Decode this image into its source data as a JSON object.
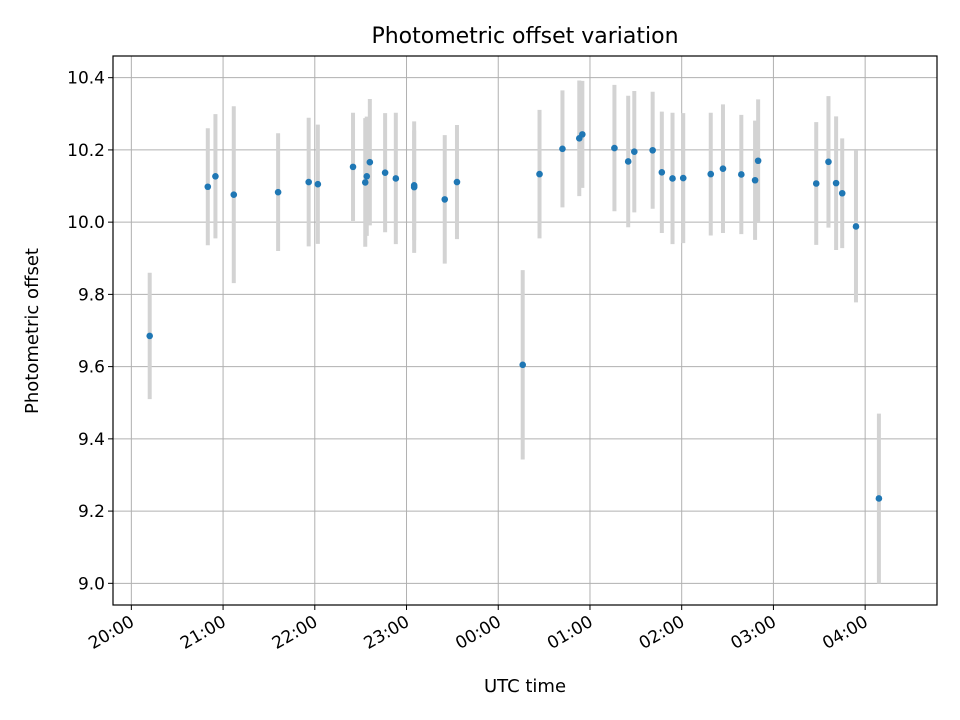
{
  "chart_data": {
    "type": "scatter",
    "title": "Photometric offset variation",
    "xlabel": "UTC time",
    "ylabel": "Photometric offset",
    "grid": true,
    "x_ticks": [
      "20:00",
      "21:00",
      "22:00",
      "23:00",
      "00:00",
      "01:00",
      "02:00",
      "03:00",
      "04:00"
    ],
    "y_ticks": [
      "9.0",
      "9.2",
      "9.4",
      "9.6",
      "9.8",
      "10.0",
      "10.2",
      "10.4"
    ],
    "xlim": [
      "19:48",
      "04:47"
    ],
    "ylim": [
      8.94,
      10.46
    ],
    "colors": {
      "point": "#1f77b4",
      "errorbar": "#d3d3d3",
      "grid": "#b0b0b0"
    },
    "points": [
      {
        "x": "20:12",
        "y": 9.685,
        "err": 0.175
      },
      {
        "x": "20:50",
        "y": 10.098,
        "err": 0.162
      },
      {
        "x": "20:55",
        "y": 10.127,
        "err": 0.172
      },
      {
        "x": "21:07",
        "y": 10.076,
        "err": 0.245
      },
      {
        "x": "21:36",
        "y": 10.083,
        "err": 0.163
      },
      {
        "x": "21:56",
        "y": 10.111,
        "err": 0.178
      },
      {
        "x": "22:02",
        "y": 10.105,
        "err": 0.165
      },
      {
        "x": "22:25",
        "y": 10.153,
        "err": 0.15
      },
      {
        "x": "22:33",
        "y": 10.11,
        "err": 0.178
      },
      {
        "x": "22:34",
        "y": 10.127,
        "err": 0.165
      },
      {
        "x": "22:36",
        "y": 10.166,
        "err": 0.175
      },
      {
        "x": "22:46",
        "y": 10.137,
        "err": 0.165
      },
      {
        "x": "22:53",
        "y": 10.121,
        "err": 0.182
      },
      {
        "x": "23:05",
        "y": 10.102,
        "err": 0.152
      },
      {
        "x": "23:05",
        "y": 10.097,
        "err": 0.182
      },
      {
        "x": "23:25",
        "y": 10.063,
        "err": 0.178
      },
      {
        "x": "23:33",
        "y": 10.111,
        "err": 0.158
      },
      {
        "x": "00:16",
        "y": 9.605,
        "err": 0.262
      },
      {
        "x": "00:27",
        "y": 10.133,
        "err": 0.178
      },
      {
        "x": "00:42",
        "y": 10.203,
        "err": 0.162
      },
      {
        "x": "00:53",
        "y": 10.232,
        "err": 0.16
      },
      {
        "x": "00:55",
        "y": 10.243,
        "err": 0.148
      },
      {
        "x": "01:16",
        "y": 10.205,
        "err": 0.175
      },
      {
        "x": "01:25",
        "y": 10.168,
        "err": 0.182
      },
      {
        "x": "01:29",
        "y": 10.195,
        "err": 0.168
      },
      {
        "x": "01:41",
        "y": 10.199,
        "err": 0.162
      },
      {
        "x": "01:47",
        "y": 10.138,
        "err": 0.168
      },
      {
        "x": "01:54",
        "y": 10.121,
        "err": 0.182
      },
      {
        "x": "02:01",
        "y": 10.122,
        "err": 0.18
      },
      {
        "x": "02:19",
        "y": 10.133,
        "err": 0.17
      },
      {
        "x": "02:27",
        "y": 10.148,
        "err": 0.178
      },
      {
        "x": "02:39",
        "y": 10.132,
        "err": 0.165
      },
      {
        "x": "02:48",
        "y": 10.116,
        "err": 0.165
      },
      {
        "x": "02:50",
        "y": 10.17,
        "err": 0.17
      },
      {
        "x": "03:28",
        "y": 10.107,
        "err": 0.17
      },
      {
        "x": "03:36",
        "y": 10.167,
        "err": 0.182
      },
      {
        "x": "03:41",
        "y": 10.108,
        "err": 0.185
      },
      {
        "x": "03:45",
        "y": 10.08,
        "err": 0.152
      },
      {
        "x": "03:54",
        "y": 9.988,
        "err": 0.21
      },
      {
        "x": "04:09",
        "y": 9.235,
        "err": 0.235
      }
    ]
  }
}
